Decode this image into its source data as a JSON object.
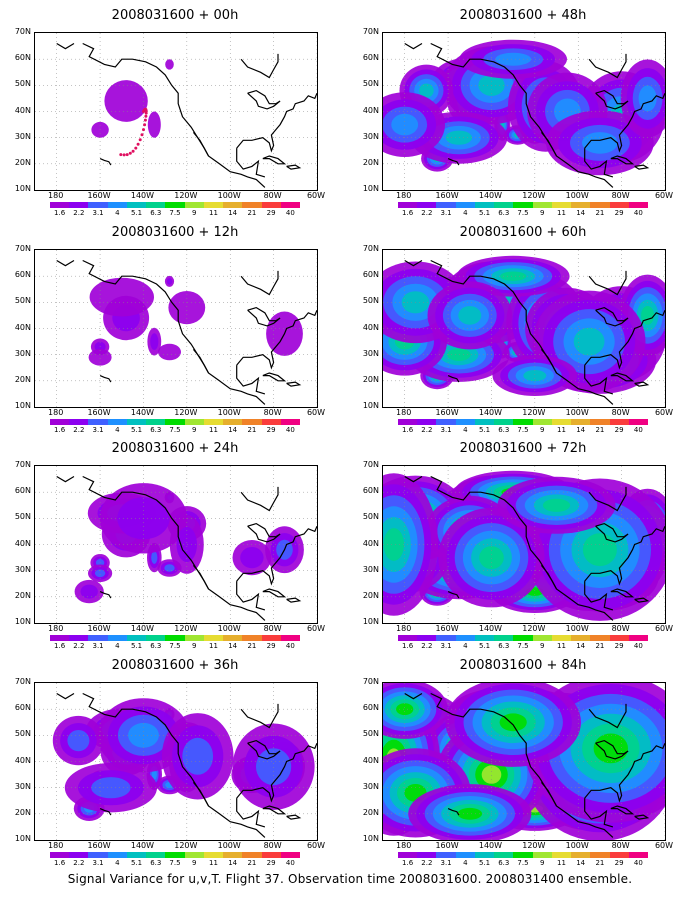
{
  "panels": [
    {
      "title": "2008031600 + 00h",
      "level": 0
    },
    {
      "title": "2008031600 + 12h",
      "level": 1
    },
    {
      "title": "2008031600 + 24h",
      "level": 2
    },
    {
      "title": "2008031600 + 36h",
      "level": 3
    },
    {
      "title": "2008031600 + 48h",
      "level": 4
    },
    {
      "title": "2008031600 + 60h",
      "level": 5
    },
    {
      "title": "2008031600 + 72h",
      "level": 6
    },
    {
      "title": "2008031600 + 84h",
      "level": 7
    }
  ],
  "lat_labels": [
    "70N",
    "60N",
    "50N",
    "40N",
    "30N",
    "20N",
    "10N"
  ],
  "lon_labels": [
    "180",
    "160W",
    "140W",
    "120W",
    "100W",
    "80W",
    "60W"
  ],
  "colorbar": {
    "labels": [
      "1.6",
      "2.2",
      "3.1",
      "4",
      "5.1",
      "6.3",
      "7.5",
      "9",
      "11",
      "14",
      "21",
      "29",
      "40"
    ],
    "colors": [
      "#a000d8",
      "#8c00f0",
      "#4060ff",
      "#1e90ff",
      "#00c0c0",
      "#00d28c",
      "#00dc00",
      "#a0e632",
      "#e6dc32",
      "#e6af2d",
      "#f08228",
      "#fa3c3c",
      "#f00082"
    ]
  },
  "caption": "Signal Variance for u,v,T. Flight 37. Observation time 2008031600. 2008031400 ensemble."
}
